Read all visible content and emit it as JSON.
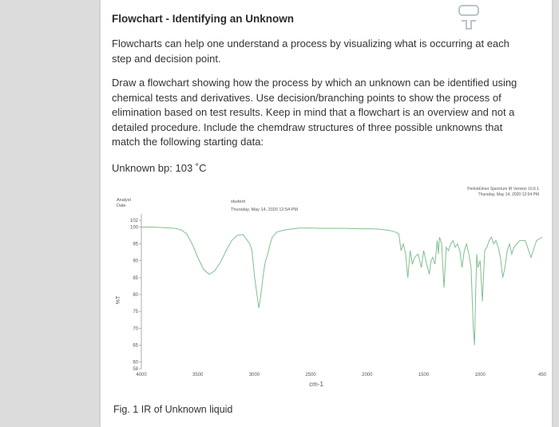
{
  "document": {
    "title": "Flowchart - Identifying an Unknown",
    "paragraph1": "Flowcharts can help one understand a process by visualizing what is occurring at each step and decision point.",
    "paragraph2": "Draw a flowchart showing how the process by which an unknown can be identified using chemical tests and derivatives. Use decision/branching points to show the process of elimination based on test results. Keep in mind that a flowchart is an overview and not a detailed procedure. Include the chemdraw structures of three possible unknowns that match the following starting data:",
    "unknown_bp": "Unknown bp: 103 ˚C",
    "caption": "Fig. 1 IR of Unknown liquid"
  },
  "spectrum": {
    "header_left_1": "Analyst",
    "header_left_2": "Date",
    "header_mid_1": "student",
    "header_mid_2": "Thursday, May 14, 2020 12:54 PM",
    "header_right_1": "PerkinElmer Spectrum IR Version 10.6.1",
    "header_right_2": "Thursday, May 14, 2020 12:54 PM",
    "y_axis_label": "%T",
    "x_axis_label": "cm-1",
    "y_ticks": [
      "102",
      "100",
      "95",
      "90",
      "85",
      "80",
      "75",
      "70",
      "65",
      "60",
      "58"
    ],
    "x_ticks": [
      "4000",
      "3500",
      "3000",
      "2500",
      "2000",
      "1500",
      "1000",
      "450"
    ]
  },
  "chart_data": {
    "type": "line",
    "title": "",
    "xlabel": "cm-1",
    "ylabel": "%T",
    "xlim": [
      4000,
      450
    ],
    "ylim": [
      58,
      102
    ],
    "series": [
      {
        "x": [
          4000,
          3900,
          3800,
          3700,
          3650,
          3600,
          3550,
          3500,
          3450,
          3400,
          3350,
          3300,
          3250,
          3200,
          3150,
          3100,
          3060,
          3040,
          3020,
          3000,
          2980,
          2960,
          2950,
          2930,
          2920,
          2900,
          2880,
          2860,
          2840,
          2800,
          2750,
          2700,
          2650,
          2600,
          2500,
          2400,
          2300,
          2200,
          2100,
          2000,
          1900,
          1800,
          1750,
          1720,
          1700,
          1680,
          1660,
          1640,
          1620,
          1600,
          1580,
          1550,
          1520,
          1500,
          1480,
          1465,
          1450,
          1435,
          1420,
          1400,
          1380,
          1370,
          1360,
          1340,
          1320,
          1300,
          1280,
          1260,
          1240,
          1220,
          1200,
          1180,
          1160,
          1140,
          1120,
          1100,
          1080,
          1060,
          1050,
          1040,
          1030,
          1020,
          1000,
          980,
          960,
          940,
          920,
          900,
          880,
          860,
          840,
          820,
          800,
          780,
          760,
          740,
          720,
          700,
          650,
          600,
          550,
          500,
          450
        ],
        "y": [
          100,
          100,
          99.8,
          99.6,
          99.2,
          98,
          95,
          91,
          87.5,
          86,
          87,
          89.5,
          93,
          96,
          97.5,
          97.8,
          96,
          95,
          93,
          86,
          81,
          76,
          78,
          83,
          86,
          90,
          92,
          95,
          97,
          98.5,
          99,
          99.3,
          99.5,
          99.7,
          99.7,
          99.6,
          99.6,
          99.6,
          99.5,
          99.5,
          99.4,
          99,
          98.5,
          98,
          93,
          95,
          92,
          85,
          93,
          89,
          91,
          92,
          88,
          93,
          90,
          88,
          86,
          90,
          91,
          89,
          96,
          92,
          97,
          95,
          82,
          94,
          93,
          95,
          96,
          94,
          95,
          93,
          88,
          93,
          95,
          92,
          88,
          70,
          65,
          80,
          92,
          88,
          90,
          78,
          93,
          94,
          96,
          97,
          95,
          96,
          94,
          91,
          85,
          88,
          93,
          95,
          92,
          94,
          96,
          96,
          91,
          96,
          97
        ]
      }
    ]
  }
}
